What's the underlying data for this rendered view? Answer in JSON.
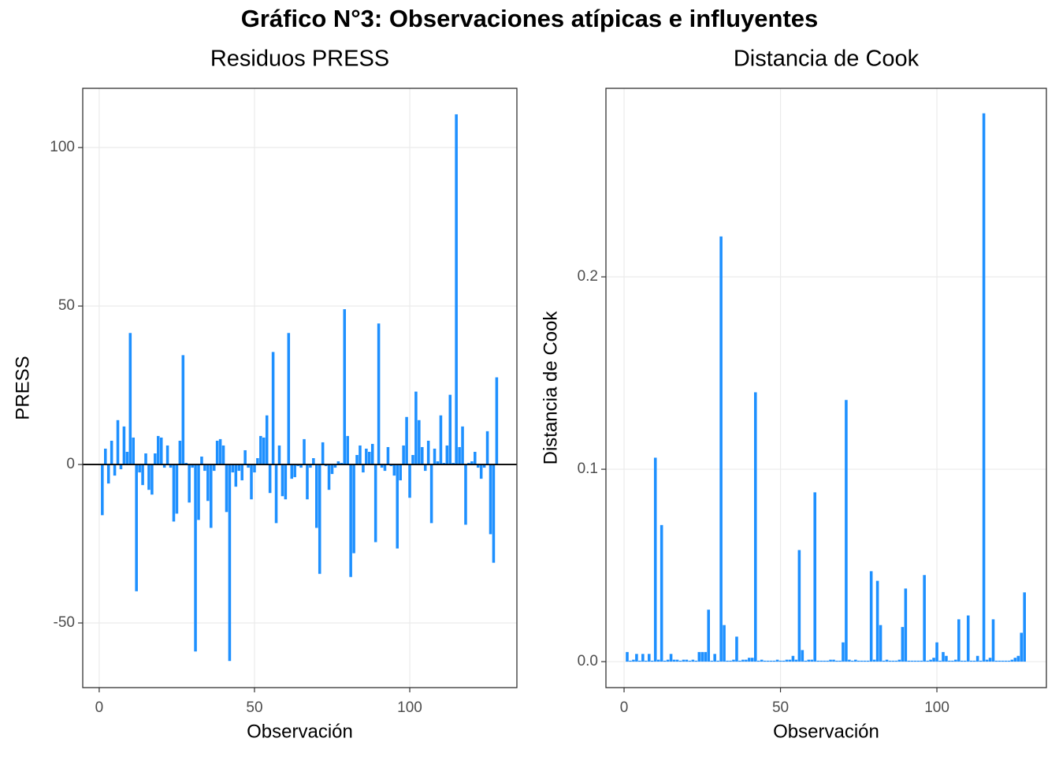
{
  "title": "Gráfico N°3: Observaciones atípicas e influyentes",
  "chart_data": [
    {
      "type": "bar",
      "title": "Residuos PRESS",
      "x_label": "Observación",
      "y_label": "PRESS",
      "color": "#1E90FF",
      "grid": true,
      "hline": 0,
      "xlim": [
        -5.3,
        134.5
      ],
      "xticks": [
        0,
        50,
        100
      ],
      "ylim": [
        -70.4,
        118.7
      ],
      "yticks": [
        -50,
        0,
        50,
        100
      ],
      "x": [
        1,
        2,
        3,
        4,
        5,
        6,
        7,
        8,
        9,
        10,
        11,
        12,
        13,
        14,
        15,
        16,
        17,
        18,
        19,
        20,
        21,
        22,
        23,
        24,
        25,
        26,
        27,
        28,
        29,
        30,
        31,
        32,
        33,
        34,
        35,
        36,
        37,
        38,
        39,
        40,
        41,
        42,
        43,
        44,
        45,
        46,
        47,
        48,
        49,
        50,
        51,
        52,
        53,
        54,
        55,
        56,
        57,
        58,
        59,
        60,
        61,
        62,
        63,
        64,
        65,
        66,
        67,
        68,
        69,
        70,
        71,
        72,
        73,
        74,
        75,
        76,
        77,
        78,
        79,
        80,
        81,
        82,
        83,
        84,
        85,
        86,
        87,
        88,
        89,
        90,
        91,
        92,
        93,
        94,
        95,
        96,
        97,
        98,
        99,
        100,
        101,
        102,
        103,
        104,
        105,
        106,
        107,
        108,
        109,
        110,
        111,
        112,
        113,
        114,
        115,
        116,
        117,
        118,
        119,
        120,
        121,
        122,
        123,
        124,
        125,
        126,
        127,
        128
      ],
      "values": [
        -16,
        5,
        -6,
        7.5,
        -3.5,
        14,
        -1.5,
        12,
        4,
        41.5,
        8.5,
        -40,
        -2.5,
        -6.5,
        3.5,
        -8,
        -9.5,
        3.5,
        9,
        8.5,
        -1,
        6,
        -1,
        -18,
        -15.5,
        7.5,
        34.5,
        0.5,
        -12,
        -1,
        -59,
        -17.5,
        2.5,
        -2,
        -11.5,
        -20,
        -2,
        7.5,
        8,
        6,
        -15,
        -62,
        -2.5,
        -7,
        -2,
        -5,
        4.5,
        -1,
        -11,
        -2.5,
        2,
        9,
        8.5,
        15.5,
        -9,
        35.5,
        -18.5,
        6,
        -10,
        -11,
        41.5,
        -4.5,
        -4,
        -0.5,
        -1,
        8,
        -11,
        -1,
        2,
        -20,
        -34.5,
        7,
        -0.5,
        -8,
        -3,
        -1,
        1,
        0.5,
        49,
        9,
        -35.5,
        -28,
        3,
        6,
        -2.5,
        5,
        4,
        6.5,
        -24.5,
        44.5,
        -1,
        -2,
        5.5,
        -0.5,
        -3.5,
        -26.5,
        -5,
        6,
        15,
        -10.5,
        3,
        23,
        14,
        5.5,
        -2,
        7.5,
        -18.5,
        5,
        1,
        15.5,
        0.5,
        6,
        22,
        0.5,
        110.5,
        5.5,
        12,
        -19,
        0.5,
        1,
        4,
        -1,
        -4.5,
        -1,
        10.5,
        -22,
        -31,
        27.5
      ]
    },
    {
      "type": "bar",
      "title": "Distancia de Cook",
      "x_label": "Observación",
      "y_label": "Distancia de Cook",
      "color": "#1E90FF",
      "grid": true,
      "xlim": [
        -5.8,
        135
      ],
      "xticks": [
        0,
        50,
        100
      ],
      "ylim": [
        -0.0135,
        0.298
      ],
      "yticks": [
        {
          "value": 0,
          "label": "0.0"
        },
        0.1,
        0.2
      ],
      "x": [
        1,
        2,
        3,
        4,
        5,
        6,
        7,
        8,
        9,
        10,
        11,
        12,
        13,
        14,
        15,
        16,
        17,
        18,
        19,
        20,
        21,
        22,
        23,
        24,
        25,
        26,
        27,
        28,
        29,
        30,
        31,
        32,
        33,
        34,
        35,
        36,
        37,
        38,
        39,
        40,
        41,
        42,
        43,
        44,
        45,
        46,
        47,
        48,
        49,
        50,
        51,
        52,
        53,
        54,
        55,
        56,
        57,
        58,
        59,
        60,
        61,
        62,
        63,
        64,
        65,
        66,
        67,
        68,
        69,
        70,
        71,
        72,
        73,
        74,
        75,
        76,
        77,
        78,
        79,
        80,
        81,
        82,
        83,
        84,
        85,
        86,
        87,
        88,
        89,
        90,
        91,
        92,
        93,
        94,
        95,
        96,
        97,
        98,
        99,
        100,
        101,
        102,
        103,
        104,
        105,
        106,
        107,
        108,
        109,
        110,
        111,
        112,
        113,
        114,
        115,
        116,
        117,
        118,
        119,
        120,
        121,
        122,
        123,
        124,
        125,
        126,
        127,
        128
      ],
      "values": [
        0.005,
        0.0005,
        0.001,
        0.004,
        0.0005,
        0.004,
        0.0005,
        0.004,
        0.0005,
        0.106,
        0.001,
        0.071,
        0.0005,
        0.001,
        0.004,
        0.001,
        0.001,
        0.0005,
        0.001,
        0.001,
        0.0005,
        0.001,
        0.0005,
        0.005,
        0.005,
        0.005,
        0.027,
        0.0005,
        0.004,
        0.0005,
        0.221,
        0.019,
        0.0005,
        0.0005,
        0.001,
        0.013,
        0.0005,
        0.001,
        0.001,
        0.002,
        0.002,
        0.14,
        0.0005,
        0.001,
        0.0005,
        0.0005,
        0.0005,
        0.0005,
        0.001,
        0.0005,
        0.0005,
        0.001,
        0.001,
        0.003,
        0.001,
        0.058,
        0.006,
        0.0005,
        0.001,
        0.001,
        0.088,
        0.0005,
        0.0005,
        0.0005,
        0.0005,
        0.001,
        0.001,
        0.0005,
        0.0005,
        0.01,
        0.136,
        0.001,
        0.0005,
        0.001,
        0.0005,
        0.0005,
        0.0005,
        0.0005,
        0.047,
        0.001,
        0.042,
        0.019,
        0.0005,
        0.001,
        0.0005,
        0.0005,
        0.0005,
        0.001,
        0.018,
        0.038,
        0.0005,
        0.0005,
        0.0005,
        0.0005,
        0.0005,
        0.045,
        0.0005,
        0.001,
        0.002,
        0.01,
        0.0005,
        0.005,
        0.003,
        0.0005,
        0.0005,
        0.001,
        0.022,
        0.0005,
        0.0005,
        0.024,
        0.0005,
        0.0005,
        0.003,
        0.0005,
        0.285,
        0.001,
        0.002,
        0.022,
        0.0005,
        0.0005,
        0.0005,
        0.0005,
        0.0005,
        0.001,
        0.002,
        0.003,
        0.015,
        0.036
      ]
    }
  ]
}
